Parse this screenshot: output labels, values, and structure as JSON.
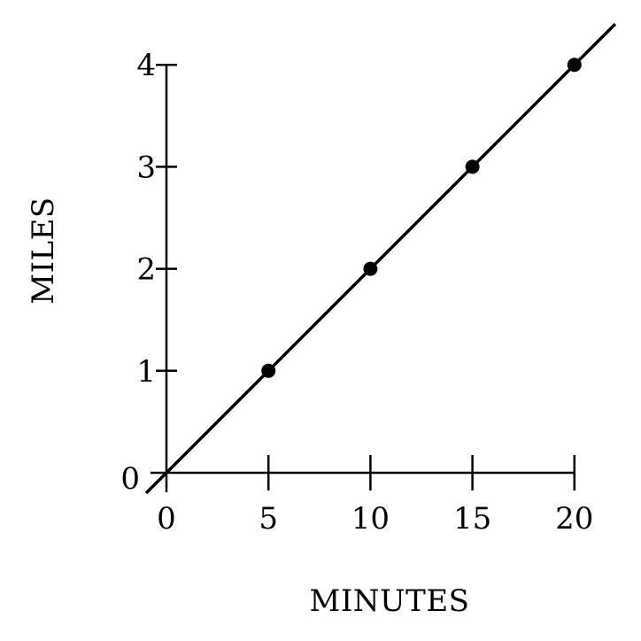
{
  "chart_data": {
    "type": "line",
    "title": "",
    "xlabel": "MINUTES",
    "ylabel": "MILES",
    "x_ticks": [
      0,
      5,
      10,
      15,
      20
    ],
    "y_ticks": [
      0,
      1,
      2,
      3,
      4
    ],
    "xlim": [
      0,
      20
    ],
    "ylim": [
      0,
      4
    ],
    "grid": false,
    "series": [
      {
        "x": [
          5,
          10,
          15,
          20
        ],
        "y": [
          1,
          2,
          3,
          4
        ],
        "line": "y = x/5",
        "line_extends": [
          -1,
          22
        ],
        "color": "#000000"
      }
    ]
  }
}
